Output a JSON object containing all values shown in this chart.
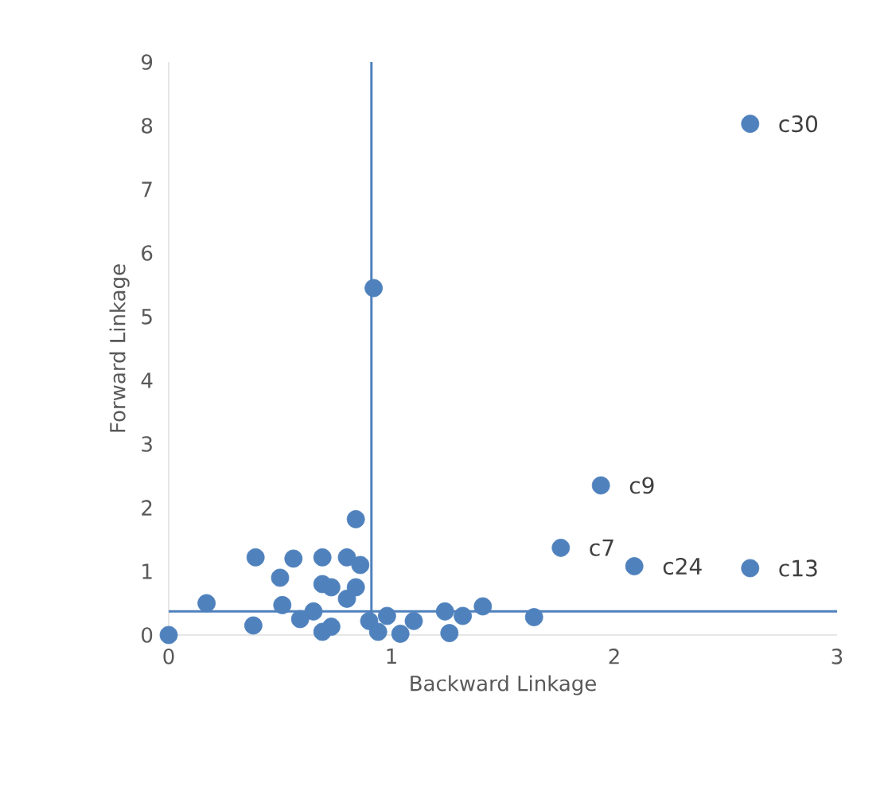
{
  "chart_data": {
    "type": "scatter",
    "xlabel": "Backward Linkage",
    "ylabel": "Forward Linkage",
    "xlim": [
      0,
      3
    ],
    "ylim": [
      0,
      9
    ],
    "xticks": [
      0,
      1,
      2,
      3
    ],
    "yticks": [
      0,
      1,
      2,
      3,
      4,
      5,
      6,
      7,
      8,
      9
    ],
    "grid": false,
    "marker": "circle",
    "series": [
      {
        "color": "#4f81bd",
        "x": [
          0,
          0.17,
          0.38,
          0.39,
          0.5,
          0.51,
          0.56,
          0.59,
          0.65,
          0.69,
          0.73,
          0.69,
          0.69,
          0.73,
          0.8,
          0.8,
          0.84,
          0.86,
          0.84,
          0.92,
          0.9,
          0.94,
          0.98,
          1.04,
          1.1,
          1.24,
          1.26,
          1.32,
          1.41,
          1.64,
          1.76,
          1.94,
          2.09,
          2.61,
          2.61
        ],
        "values": [
          0,
          0.5,
          0.15,
          1.22,
          0.9,
          0.47,
          1.2,
          0.25,
          0.37,
          0.05,
          0.13,
          1.22,
          0.8,
          0.75,
          1.22,
          0.57,
          0.75,
          1.1,
          1.82,
          5.45,
          0.22,
          0.05,
          0.3,
          0.02,
          0.22,
          0.37,
          0.03,
          0.3,
          0.45,
          0.28,
          1.37,
          2.35,
          1.08,
          1.05,
          8.03
        ]
      }
    ],
    "ref_lines": [
      {
        "axis": "x",
        "value": 0.91,
        "color": "#4f81bd"
      },
      {
        "axis": "y",
        "value": 0.37,
        "color": "#4f81bd"
      }
    ],
    "annotations": [
      {
        "text": "c30",
        "x": 2.61,
        "y": 8.03
      },
      {
        "text": "c9",
        "x": 1.94,
        "y": 2.35
      },
      {
        "text": "c7",
        "x": 1.76,
        "y": 1.37
      },
      {
        "text": "c24",
        "x": 2.09,
        "y": 1.08
      },
      {
        "text": "c13",
        "x": 2.61,
        "y": 1.05
      }
    ]
  }
}
